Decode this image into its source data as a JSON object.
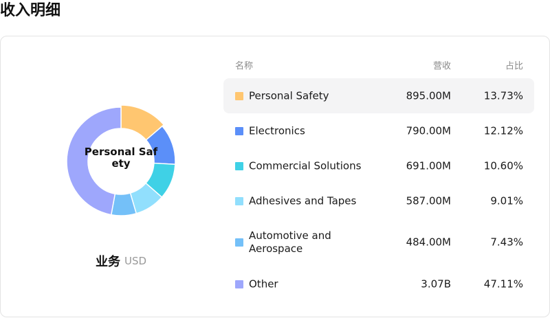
{
  "page": {
    "title": "收入明细"
  },
  "donut": {
    "center_label": "Personal Safety",
    "selected_index": 0
  },
  "segment": {
    "title": "业务",
    "unit": "USD"
  },
  "table": {
    "headers": {
      "name": "名称",
      "revenue": "营收",
      "share": "占比"
    },
    "rows": [
      {
        "name": "Personal Safety",
        "revenue": "895.00M",
        "share": "13.73%",
        "share_value": 13.73,
        "color": "#ffc670"
      },
      {
        "name": "Electronics",
        "revenue": "790.00M",
        "share": "12.12%",
        "share_value": 12.12,
        "color": "#5b8ff9"
      },
      {
        "name": "Commercial Solutions",
        "revenue": "691.00M",
        "share": "10.60%",
        "share_value": 10.6,
        "color": "#3fd1e6"
      },
      {
        "name": "Adhesives and Tapes",
        "revenue": "587.00M",
        "share": "9.01%",
        "share_value": 9.01,
        "color": "#91dffd"
      },
      {
        "name": "Automotive and Aerospace",
        "revenue": "484.00M",
        "share": "7.43%",
        "share_value": 7.43,
        "color": "#74c0f8"
      },
      {
        "name": "Other",
        "revenue": "3.07B",
        "share": "47.11%",
        "share_value": 47.11,
        "color": "#9ea7fc"
      }
    ]
  }
}
